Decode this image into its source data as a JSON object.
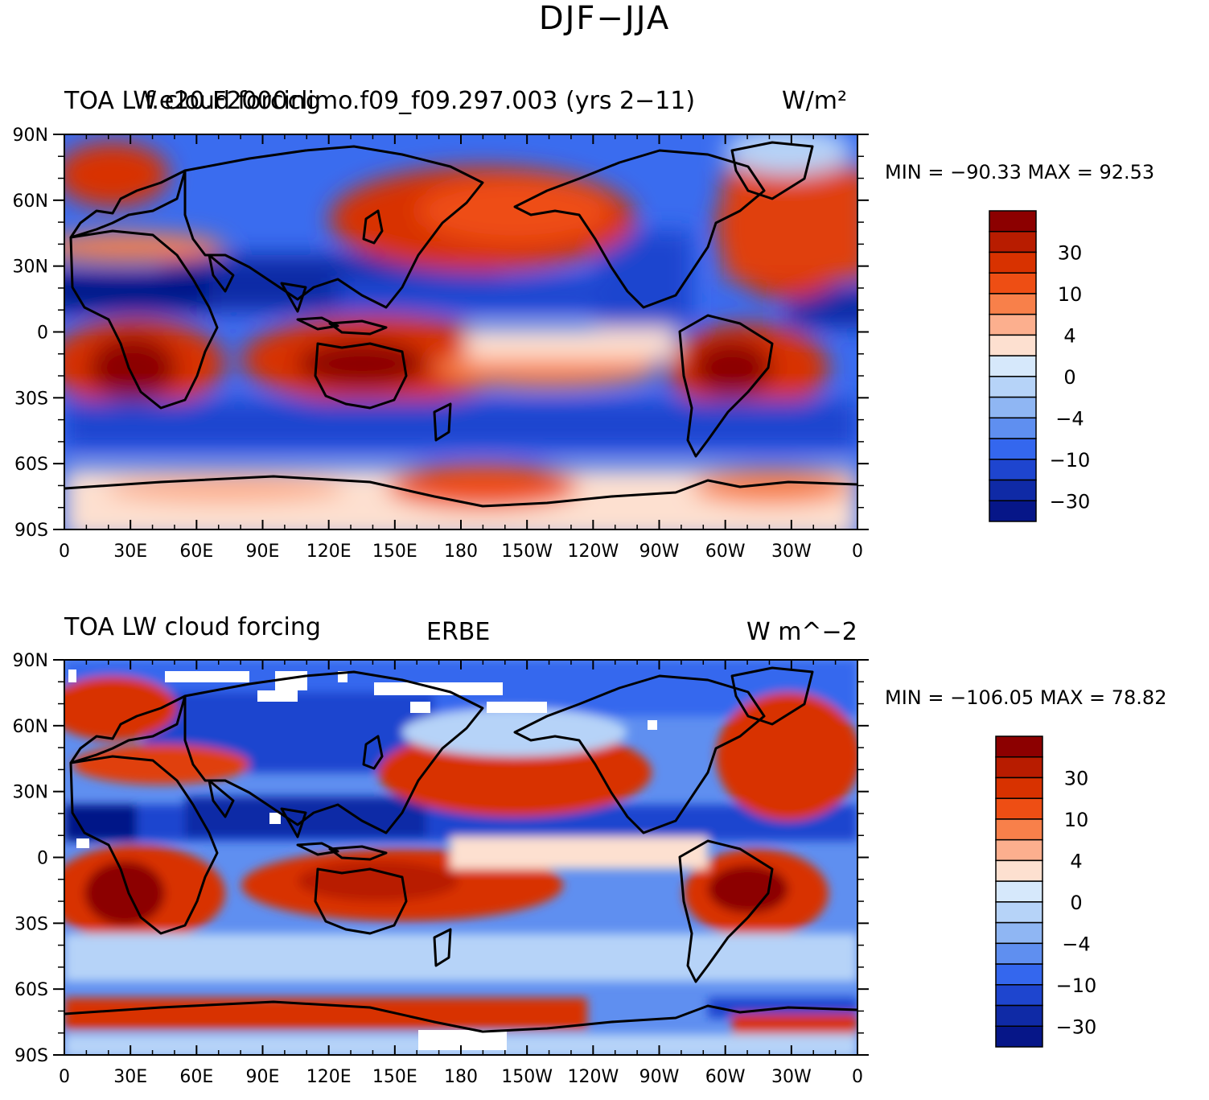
{
  "figure": {
    "title": "DJF−JJA"
  },
  "panels": [
    {
      "left_title": "TOA LW cloud forcing",
      "center_title": "f.e20.F2000climo.f09_f09.297.003 (yrs 2−11)",
      "units": "W/m²",
      "stats": "MIN = −90.33 MAX =  92.53"
    },
    {
      "left_title": "TOA LW cloud forcing",
      "center_title": "ERBE",
      "units": "W m^−2",
      "stats": "MIN = −106.05 MAX =  78.82"
    }
  ],
  "colorbar": {
    "labels": [
      "30",
      "10",
      "4",
      "0",
      "−4",
      "−10",
      "−30"
    ],
    "colors": [
      "#8c0000",
      "#b81c00",
      "#d83200",
      "#ee4e14",
      "#f8804a",
      "#fcaf8e",
      "#fde0d0",
      "#d6e8fb",
      "#b6d3f8",
      "#8fb6f3",
      "#5f8ff0",
      "#3467ee",
      "#1e45cf",
      "#0f2aa6",
      "#061688"
    ]
  },
  "chart_data": {
    "type": "heatmap",
    "title": "DJF−JJA",
    "x_ticks": [
      "0",
      "30E",
      "60E",
      "90E",
      "120E",
      "150E",
      "180",
      "150W",
      "120W",
      "90W",
      "60W",
      "30W",
      "0"
    ],
    "y_ticks": [
      "90N",
      "60N",
      "30N",
      "0",
      "30S",
      "60S",
      "90S"
    ],
    "xlim": [
      0,
      360
    ],
    "ylim": [
      -90,
      90
    ],
    "contour_levels": [
      -50,
      -30,
      -20,
      -10,
      -6,
      -4,
      -2,
      0,
      2,
      4,
      6,
      10,
      20,
      30,
      50
    ],
    "panels": [
      {
        "name": "f.e20.F2000climo.f09_f09.297.003 (yrs 2−11)",
        "min": -90.33,
        "max": 92.53
      },
      {
        "name": "ERBE",
        "min": -106.05,
        "max": 78.82
      }
    ]
  }
}
